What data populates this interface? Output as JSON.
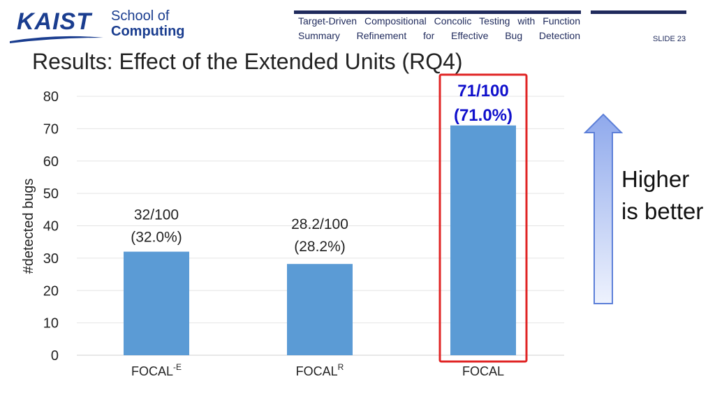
{
  "header": {
    "logo_text": "KAIST",
    "school_line1": "School of",
    "school_line2": "Computing",
    "paper_title": "Target-Driven Compositional Concolic Testing with Function Summary Refinement for Effective Bug Detection",
    "slide_number": "SLIDE 23"
  },
  "slide": {
    "title": "Results: Effect of the Extended Units (RQ4)",
    "note_line1": "Higher",
    "note_line2": "is better"
  },
  "colors": {
    "bar": "#5b9bd5",
    "highlight_box": "#e02424",
    "highlight_label": "#1010cc",
    "navy": "#1f2a5c"
  },
  "chart_data": {
    "type": "bar",
    "categories": [
      {
        "base": "FOCAL",
        "sup": "-E"
      },
      {
        "base": "FOCAL",
        "sup": "R"
      },
      {
        "base": "FOCAL",
        "sup": ""
      }
    ],
    "values": [
      32,
      28.2,
      71
    ],
    "data_labels": [
      [
        "32/100",
        "(32.0%)"
      ],
      [
        "28.2/100",
        "(28.2%)"
      ],
      [
        "71/100",
        "(71.0%)"
      ]
    ],
    "highlighted_index": 2,
    "ylabel": "#detected bugs",
    "ylim": [
      0,
      80
    ],
    "yticks": [
      0,
      10,
      20,
      30,
      40,
      50,
      60,
      70,
      80
    ],
    "grid": true
  }
}
